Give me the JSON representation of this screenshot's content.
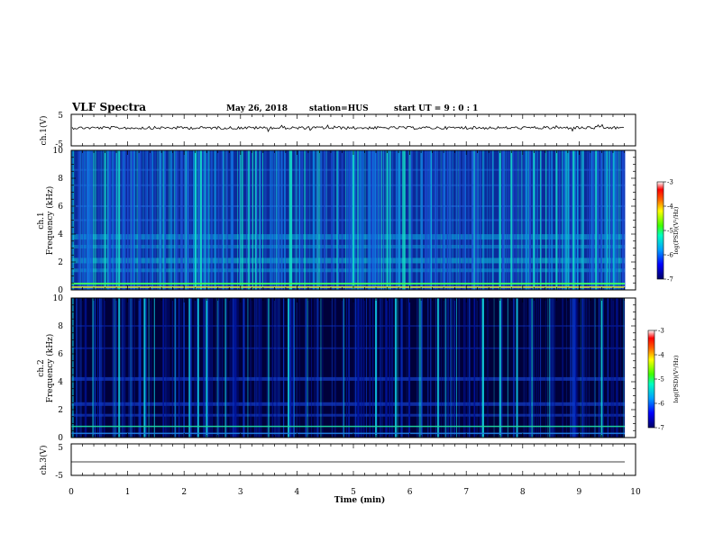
{
  "header": {
    "title": "VLF Spectra",
    "date": "May 26, 2018",
    "station": "station=HUS",
    "start": "start  UT =   9 : 0  : 1"
  },
  "chart_data": [
    {
      "type": "line",
      "name": "ch1-waveform",
      "ylabel": "ch.1(V)",
      "ylim": [
        -5,
        5
      ],
      "yticks": [
        "5",
        "-5"
      ],
      "xlim": [
        0,
        10
      ]
    },
    {
      "type": "heatmap",
      "name": "ch1-spectrogram",
      "ylabel": "ch.1",
      "ylabel2": "Frequency (kHz)",
      "ylim": [
        0,
        10
      ],
      "yticks": [
        "0",
        "2",
        "4",
        "6",
        "8",
        "10"
      ],
      "xlim": [
        0,
        10
      ],
      "colorbar": {
        "label": "log(PSD)(V²/Hz)",
        "ticks": [
          "-3",
          "-4",
          "-5",
          "-6",
          "-7"
        ],
        "range": [
          -7,
          -3
        ]
      }
    },
    {
      "type": "heatmap",
      "name": "ch2-spectrogram",
      "ylabel": "ch.2",
      "ylabel2": "Frequency (kHz)",
      "ylim": [
        0,
        10
      ],
      "yticks": [
        "0",
        "2",
        "4",
        "6",
        "8",
        "10"
      ],
      "xlim": [
        0,
        10
      ],
      "colorbar": {
        "label": "log(PSD)(V²/Hz)",
        "ticks": [
          "-3",
          "-4",
          "-5",
          "-6",
          "-7"
        ],
        "range": [
          -7,
          -3
        ]
      }
    },
    {
      "type": "line",
      "name": "ch3-waveform",
      "ylabel": "ch.3(V)",
      "ylim": [
        -5,
        5
      ],
      "yticks": [
        "5",
        "-5"
      ],
      "xlim": [
        0,
        10
      ]
    }
  ],
  "xaxis": {
    "label": "Time  (min)",
    "ticks": [
      "0",
      "1",
      "2",
      "3",
      "4",
      "5",
      "6",
      "7",
      "8",
      "9",
      "10"
    ]
  }
}
